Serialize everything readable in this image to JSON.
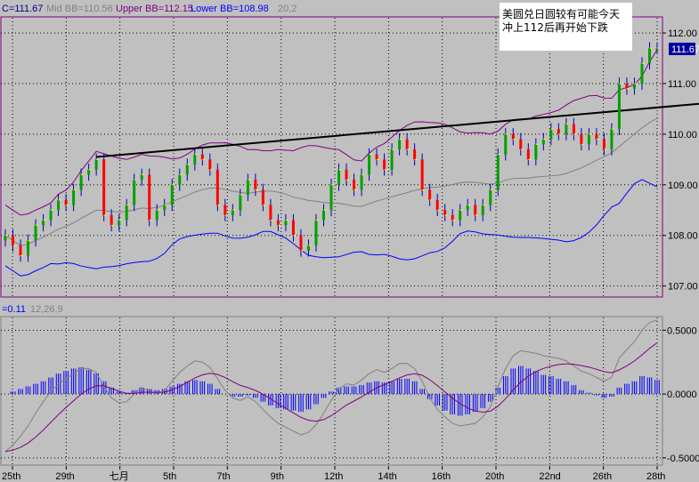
{
  "header": {
    "close_label": "C=111.67",
    "mid_label": "Mid BB=110.56",
    "upper_label": "Upper BB=112.15",
    "lower_label": "Lower BB=108.98",
    "period_label": "20,2"
  },
  "annotation": {
    "line1": "美圆兑日圆较有可能今天",
    "line2": "冲上112后再开始下跌"
  },
  "price_badge": "111.67",
  "macd_header": {
    "value_label": "=0.11",
    "params_label": "12,26,9"
  },
  "colors": {
    "background": "#c0c0c0",
    "bb_band": "#800080",
    "lower_band": "#0000ff",
    "mid_line": "#808080",
    "bar_up": "#00a000",
    "bar_down": "#ff0000",
    "bar_wick": "#0000c0",
    "bar_close_up": "#ffff00",
    "trendline": "#000000",
    "histogram": "#0000ff",
    "macd_line": "#808080",
    "signal_line": "#800080"
  },
  "chart_data": [
    {
      "type": "ohlc",
      "y_ticks": [
        "112.00",
        "111.00",
        "110.00",
        "109.00",
        "108.00",
        "107.00"
      ],
      "ylim": [
        106.8,
        112.3
      ],
      "x_ticks": [
        "25th",
        "29th",
        "七月",
        "5th",
        "7th",
        "9th",
        "12th",
        "14th",
        "16th",
        "20th",
        "22nd",
        "26th",
        "28th"
      ],
      "last_close": 111.67,
      "bollinger": {
        "mid": 110.56,
        "upper": 112.15,
        "lower": 108.98,
        "params": "20,2"
      },
      "close_series": [
        108.0,
        107.8,
        107.6,
        107.9,
        108.2,
        108.3,
        108.5,
        108.7,
        108.6,
        108.9,
        109.2,
        109.3,
        109.5,
        108.4,
        108.2,
        108.3,
        108.6,
        109.1,
        109.2,
        108.3,
        108.5,
        108.6,
        109.0,
        109.2,
        109.4,
        109.6,
        109.5,
        109.3,
        108.6,
        108.4,
        108.5,
        108.8,
        109.1,
        108.9,
        108.6,
        108.3,
        108.2,
        108.3,
        108.0,
        107.7,
        107.8,
        108.3,
        108.5,
        109.0,
        109.3,
        109.1,
        108.9,
        109.2,
        109.6,
        109.5,
        109.3,
        109.7,
        109.9,
        109.7,
        109.5,
        108.9,
        108.7,
        108.5,
        108.4,
        108.3,
        108.5,
        108.6,
        108.4,
        108.6,
        108.9,
        109.6,
        110.0,
        109.9,
        109.7,
        109.5,
        109.8,
        109.9,
        110.1,
        110.0,
        110.2,
        110.0,
        109.8,
        110.0,
        109.9,
        109.7,
        110.1,
        111.0,
        110.9,
        111.0,
        111.4,
        111.7,
        111.7
      ],
      "trendline": {
        "from": 109.55,
        "to": 110.6
      }
    },
    {
      "type": "macd",
      "params": "12,26,9",
      "value": 0.11,
      "y_ticks": [
        "0.5000",
        "0.0000",
        "-0.5000"
      ],
      "ylim": [
        -0.55,
        0.6
      ],
      "histogram": [
        0.0,
        0.02,
        0.04,
        0.06,
        0.08,
        0.1,
        0.13,
        0.16,
        0.18,
        0.2,
        0.21,
        0.19,
        0.16,
        0.1,
        0.05,
        0.02,
        0.01,
        0.03,
        0.05,
        0.04,
        0.03,
        0.04,
        0.06,
        0.08,
        0.1,
        0.11,
        0.1,
        0.08,
        0.04,
        0.0,
        -0.02,
        -0.02,
        -0.01,
        -0.03,
        -0.06,
        -0.09,
        -0.11,
        -0.12,
        -0.13,
        -0.14,
        -0.12,
        -0.08,
        -0.03,
        0.02,
        0.05,
        0.06,
        0.06,
        0.07,
        0.09,
        0.1,
        0.09,
        0.1,
        0.12,
        0.12,
        0.1,
        0.04,
        -0.04,
        -0.09,
        -0.13,
        -0.16,
        -0.17,
        -0.16,
        -0.14,
        -0.11,
        -0.06,
        0.05,
        0.14,
        0.2,
        0.22,
        0.2,
        0.18,
        0.15,
        0.14,
        0.12,
        0.1,
        0.07,
        0.03,
        0.01,
        -0.01,
        -0.03,
        -0.02,
        0.05,
        0.08,
        0.1,
        0.14,
        0.13,
        0.11
      ],
      "macd_line": [
        -0.45,
        -0.4,
        -0.33,
        -0.25,
        -0.15,
        -0.06,
        0.02,
        0.08,
        0.12,
        0.16,
        0.2,
        0.2,
        0.17,
        0.06,
        -0.03,
        -0.07,
        -0.06,
        0.0,
        0.05,
        0.02,
        0.0,
        0.03,
        0.1,
        0.17,
        0.22,
        0.26,
        0.25,
        0.21,
        0.12,
        0.03,
        -0.03,
        -0.05,
        -0.02,
        -0.06,
        -0.12,
        -0.18,
        -0.23,
        -0.26,
        -0.29,
        -0.32,
        -0.3,
        -0.24,
        -0.15,
        -0.05,
        0.04,
        0.08,
        0.07,
        0.11,
        0.16,
        0.19,
        0.17,
        0.2,
        0.24,
        0.24,
        0.2,
        0.1,
        -0.03,
        -0.12,
        -0.18,
        -0.23,
        -0.25,
        -0.24,
        -0.23,
        -0.18,
        -0.1,
        0.06,
        0.2,
        0.3,
        0.34,
        0.33,
        0.32,
        0.3,
        0.29,
        0.28,
        0.26,
        0.22,
        0.18,
        0.16,
        0.13,
        0.1,
        0.13,
        0.28,
        0.35,
        0.41,
        0.5,
        0.56,
        0.58
      ]
    }
  ]
}
